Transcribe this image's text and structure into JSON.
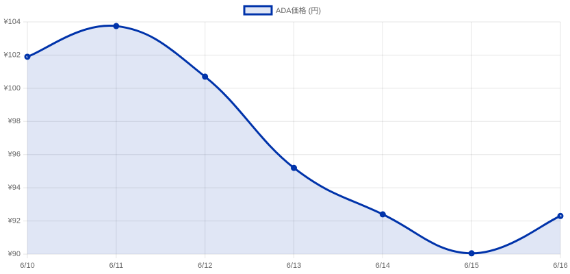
{
  "chart_data": {
    "type": "line",
    "categories": [
      "6/10",
      "6/11",
      "6/12",
      "6/13",
      "6/14",
      "6/15",
      "6/16"
    ],
    "series": [
      {
        "name": "ADA価格 (円)",
        "color": "#0033aa",
        "fill": "rgba(0,51,170,0.12)",
        "values": [
          101.9,
          103.75,
          100.7,
          95.2,
          92.4,
          90.05,
          92.3
        ]
      }
    ],
    "ylim": [
      90,
      104
    ],
    "yticks": [
      {
        "value": 90,
        "label": "¥90"
      },
      {
        "value": 92,
        "label": "¥92"
      },
      {
        "value": 94,
        "label": "¥94"
      },
      {
        "value": 96,
        "label": "¥96"
      },
      {
        "value": 98,
        "label": "¥98"
      },
      {
        "value": 100,
        "label": "¥100"
      },
      {
        "value": 102,
        "label": "¥102"
      },
      {
        "value": 104,
        "label": "¥104"
      }
    ],
    "grid": true,
    "legend": "top"
  }
}
